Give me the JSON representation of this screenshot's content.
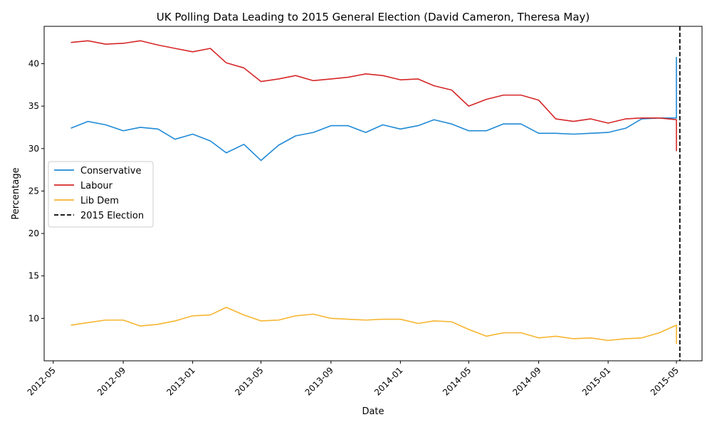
{
  "chart_data": {
    "type": "line",
    "title": "UK Polling Data Leading to 2015 General Election (David Cameron, Theresa May)",
    "xlabel": "Date",
    "ylabel": "Percentage",
    "xlim": [
      "2012-04-15",
      "2015-06-15"
    ],
    "ylim": [
      5.0,
      44.4
    ],
    "grid": false,
    "legend_position": "center-left",
    "x_ticks": [
      "2012-05",
      "2012-09",
      "2013-01",
      "2013-05",
      "2013-09",
      "2014-01",
      "2014-05",
      "2014-09",
      "2015-01",
      "2015-05"
    ],
    "y_ticks": [
      10,
      15,
      20,
      25,
      30,
      35,
      40
    ],
    "x": [
      "2012-06-01",
      "2012-07-01",
      "2012-08-01",
      "2012-09-01",
      "2012-10-01",
      "2012-11-01",
      "2012-12-01",
      "2013-01-01",
      "2013-02-01",
      "2013-03-01",
      "2013-04-01",
      "2013-05-01",
      "2013-06-01",
      "2013-07-01",
      "2013-08-01",
      "2013-09-01",
      "2013-10-01",
      "2013-11-01",
      "2013-12-01",
      "2014-01-01",
      "2014-02-01",
      "2014-03-01",
      "2014-04-01",
      "2014-05-01",
      "2014-06-01",
      "2014-07-01",
      "2014-08-01",
      "2014-09-01",
      "2014-10-01",
      "2014-11-01",
      "2014-12-01",
      "2015-01-01",
      "2015-02-01",
      "2015-03-01",
      "2015-04-01",
      "2015-05-01",
      "2015-05-01"
    ],
    "series": [
      {
        "name": "Conservative",
        "color": "#1f8ad6",
        "values": [
          32.4,
          33.2,
          32.8,
          32.1,
          32.5,
          32.3,
          31.1,
          31.7,
          30.9,
          29.5,
          30.5,
          28.6,
          30.4,
          31.5,
          31.9,
          32.7,
          32.7,
          31.9,
          32.8,
          32.3,
          32.7,
          33.4,
          32.9,
          32.1,
          32.1,
          32.9,
          32.9,
          31.8,
          31.8,
          31.7,
          31.8,
          31.9,
          32.4,
          33.5,
          33.6,
          33.6,
          40.8
        ]
      },
      {
        "name": "Labour",
        "color": "#d62728",
        "values": [
          42.5,
          42.7,
          42.3,
          42.4,
          42.7,
          42.2,
          41.8,
          41.4,
          41.8,
          40.1,
          39.5,
          37.9,
          38.2,
          38.6,
          38.0,
          38.2,
          38.4,
          38.8,
          38.6,
          38.1,
          38.2,
          37.4,
          36.9,
          35.0,
          35.8,
          36.3,
          36.3,
          35.7,
          33.5,
          33.2,
          33.5,
          33.0,
          33.5,
          33.6,
          33.6,
          33.4,
          29.7
        ]
      },
      {
        "name": "Lib Dem",
        "color": "#f6b52f",
        "values": [
          9.2,
          9.5,
          9.8,
          9.8,
          9.1,
          9.3,
          9.7,
          10.3,
          10.4,
          11.3,
          10.4,
          9.7,
          9.8,
          10.3,
          10.5,
          10.0,
          9.9,
          9.8,
          9.9,
          9.9,
          9.4,
          9.7,
          9.6,
          8.7,
          7.9,
          8.3,
          8.3,
          7.7,
          7.9,
          7.6,
          7.7,
          7.4,
          7.6,
          7.7,
          8.3,
          9.2,
          7.0
        ]
      }
    ],
    "reference_lines": [
      {
        "name": "2015 Election",
        "date": "2015-05-07",
        "color": "#000000",
        "style": "dashed"
      }
    ]
  }
}
